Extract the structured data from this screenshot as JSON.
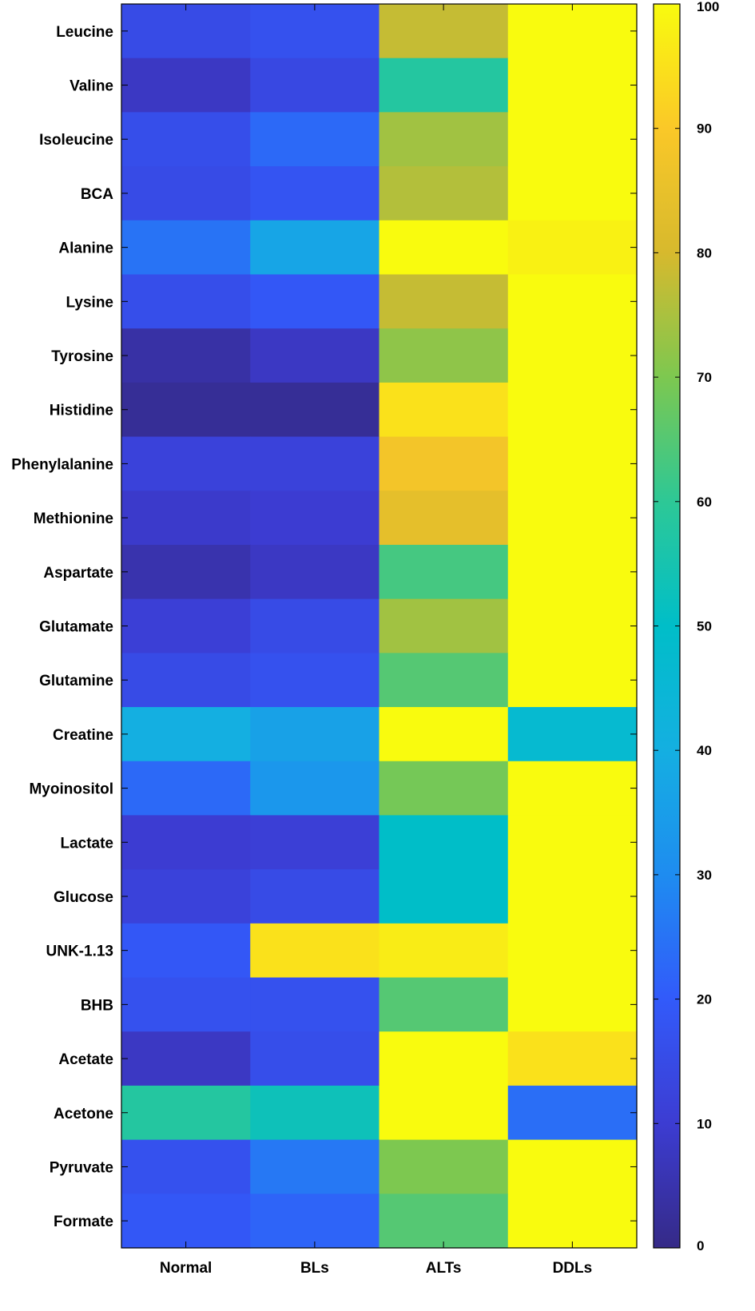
{
  "chart_data": {
    "type": "heatmap",
    "x_categories": [
      "Normal",
      "BLs",
      "ALTs",
      "DDLs"
    ],
    "y_categories": [
      "Leucine",
      "Valine",
      "Isoleucine",
      "BCA",
      "Alanine",
      "Lysine",
      "Tyrosine",
      "Histidine",
      "Phenylalanine",
      "Methionine",
      "Aspartate",
      "Glutamate",
      "Glutamine",
      "Creatine",
      "Myoinositol",
      "Lactate",
      "Glucose",
      "UNK-1.13",
      "BHB",
      "Acetate",
      "Acetone",
      "Pyruvate",
      "Formate"
    ],
    "values": [
      [
        15,
        17,
        78,
        100
      ],
      [
        8,
        14,
        58,
        100
      ],
      [
        16,
        23,
        74,
        100
      ],
      [
        15,
        18,
        76,
        100
      ],
      [
        25,
        37,
        100,
        98
      ],
      [
        16,
        19,
        78,
        100
      ],
      [
        4,
        8,
        72,
        100
      ],
      [
        2,
        2,
        95,
        100
      ],
      [
        12,
        12,
        88,
        100
      ],
      [
        9,
        10,
        84,
        100
      ],
      [
        5,
        8,
        63,
        100
      ],
      [
        11,
        15,
        74,
        100
      ],
      [
        15,
        17,
        65,
        100
      ],
      [
        40,
        36,
        100,
        47
      ],
      [
        23,
        33,
        69,
        100
      ],
      [
        10,
        11,
        50,
        100
      ],
      [
        12,
        15,
        50,
        100
      ],
      [
        19,
        95,
        97,
        100
      ],
      [
        17,
        17,
        65,
        100
      ],
      [
        8,
        16,
        100,
        95
      ],
      [
        58,
        53,
        100,
        24
      ],
      [
        17,
        26,
        70,
        100
      ],
      [
        19,
        22,
        65,
        100
      ]
    ],
    "colorbar": {
      "min": 0,
      "max": 100,
      "ticks": [
        0,
        10,
        20,
        30,
        40,
        50,
        60,
        70,
        80,
        90,
        100
      ],
      "colormap": "parula"
    },
    "title": "",
    "xlabel": "",
    "ylabel": ""
  }
}
